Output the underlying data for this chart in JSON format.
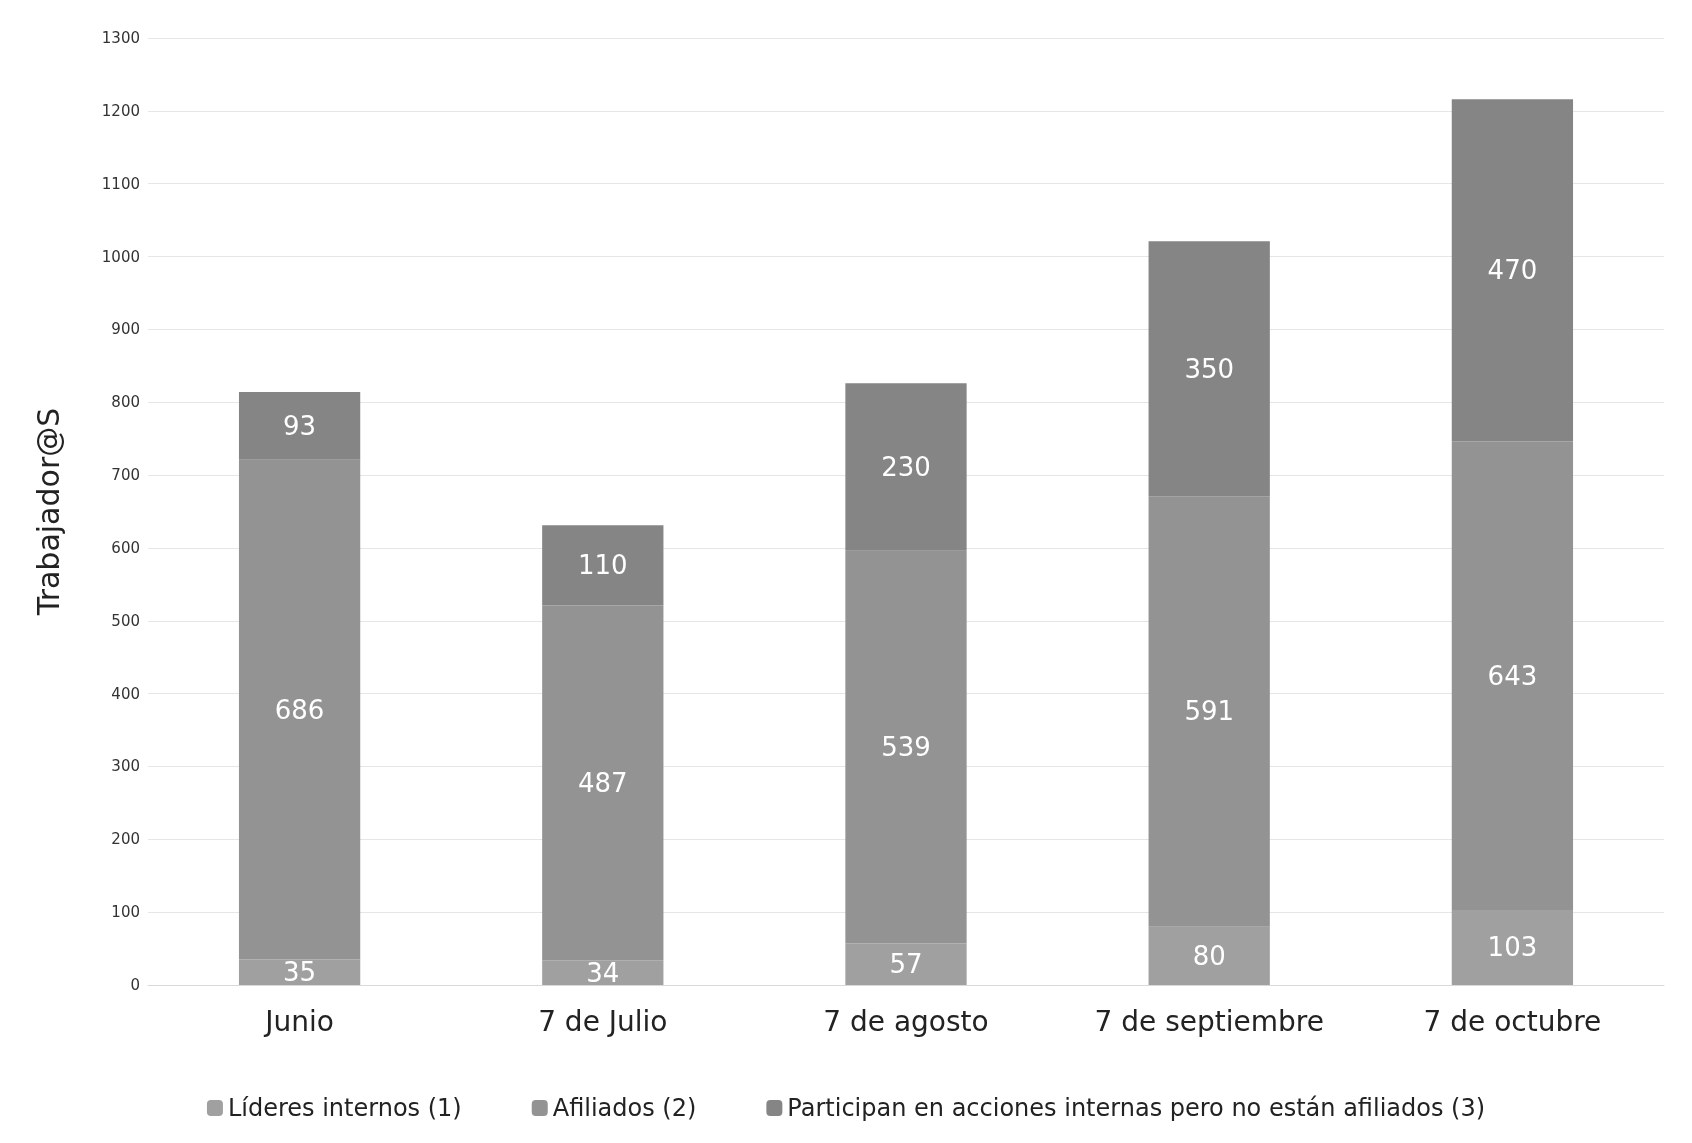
{
  "chart_data": {
    "type": "bar",
    "stacked": true,
    "ylabel": "Trabajador@S",
    "categories": [
      "Junio",
      "7 de Julio",
      "7 de agosto",
      "7 de septiembre",
      "7 de octubre"
    ],
    "series": [
      {
        "name": "Líderes internos (1)",
        "color": "#a0a0a0",
        "values": [
          35,
          34,
          57,
          80,
          103
        ]
      },
      {
        "name": "Afiliados (2)",
        "color": "#939393",
        "values": [
          686,
          487,
          539,
          591,
          643
        ]
      },
      {
        "name": "Participan en acciones internas pero no están afiliados (3)",
        "color": "#858585",
        "values": [
          93,
          110,
          230,
          350,
          470
        ]
      }
    ],
    "ylim": [
      0,
      1300
    ],
    "yticks": [
      0,
      100,
      200,
      300,
      400,
      500,
      600,
      700,
      800,
      900,
      1000,
      1100,
      1200,
      1300
    ],
    "grid": "y",
    "legend": "bottom",
    "data_labels": true
  }
}
